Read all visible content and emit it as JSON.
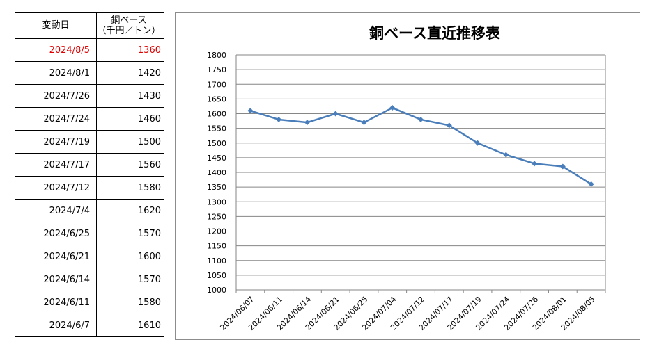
{
  "table": {
    "header": {
      "col1": "変動日",
      "col2_line1": "銅ベース",
      "col2_line2": "（千円／トン）"
    },
    "rows": [
      {
        "date": "2024/8/5",
        "price": "1360",
        "highlight": true
      },
      {
        "date": "2024/8/1",
        "price": "1420"
      },
      {
        "date": "2024/7/26",
        "price": "1430"
      },
      {
        "date": "2024/7/24",
        "price": "1460"
      },
      {
        "date": "2024/7/19",
        "price": "1500"
      },
      {
        "date": "2024/7/17",
        "price": "1560"
      },
      {
        "date": "2024/7/12",
        "price": "1580"
      },
      {
        "date": "2024/7/4",
        "price": "1620"
      },
      {
        "date": "2024/6/25",
        "price": "1570"
      },
      {
        "date": "2024/6/21",
        "price": "1600"
      },
      {
        "date": "2024/6/14",
        "price": "1570"
      },
      {
        "date": "2024/6/11",
        "price": "1580"
      },
      {
        "date": "2024/6/7",
        "price": "1610"
      }
    ],
    "highlight_color": "#e00000"
  },
  "chart_data": {
    "type": "line",
    "title": "銅ベース直近推移表",
    "categories": [
      "2024/06/07",
      "2024/06/11",
      "2024/06/14",
      "2024/06/21",
      "2024/06/25",
      "2024/07/04",
      "2024/07/12",
      "2024/07/17",
      "2024/07/19",
      "2024/07/24",
      "2024/07/26",
      "2024/08/01",
      "2024/08/05"
    ],
    "series": [
      {
        "values": [
          1610,
          1580,
          1570,
          1600,
          1570,
          1620,
          1580,
          1560,
          1500,
          1460,
          1430,
          1420,
          1360
        ],
        "color": "#4a7ebb",
        "marker": "diamond"
      }
    ],
    "ylim": [
      1000,
      1800
    ],
    "yticks": [
      1800,
      1750,
      1700,
      1650,
      1600,
      1550,
      1500,
      1450,
      1400,
      1350,
      1300,
      1250,
      1200,
      1150,
      1100,
      1050,
      1000
    ],
    "grid": true,
    "legend": "none"
  }
}
